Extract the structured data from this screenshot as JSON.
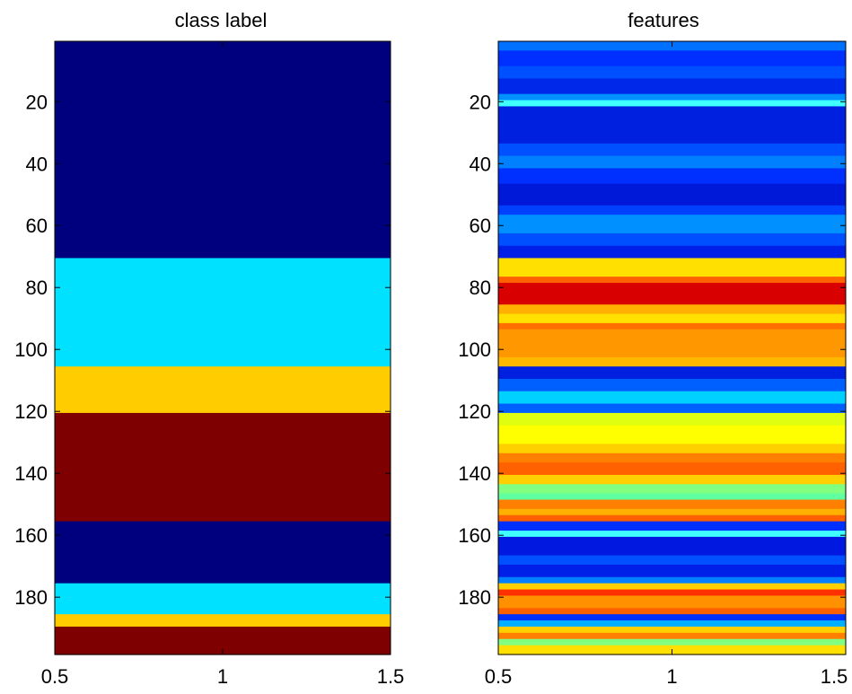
{
  "chart_data": [
    {
      "type": "heatmap",
      "title": "class label",
      "xlabel": "",
      "ylabel": "",
      "xlim": [
        0.5,
        1.5
      ],
      "ylim": [
        0.5,
        198.5
      ],
      "y_reversed": true,
      "x_ticks": [
        "0.5",
        "1",
        "1.5"
      ],
      "y_ticks": [
        "20",
        "40",
        "60",
        "80",
        "100",
        "120",
        "140",
        "160",
        "180"
      ],
      "grid": false,
      "colormap": "jet",
      "bands": [
        {
          "from": 0.5,
          "to": 70.5,
          "color": "#00007f"
        },
        {
          "from": 70.5,
          "to": 105.5,
          "color": "#00e0ff"
        },
        {
          "from": 105.5,
          "to": 120.5,
          "color": "#ffcc00"
        },
        {
          "from": 120.5,
          "to": 155.5,
          "color": "#7f0000"
        },
        {
          "from": 155.5,
          "to": 175.5,
          "color": "#00007f"
        },
        {
          "from": 175.5,
          "to": 185.5,
          "color": "#00e0ff"
        },
        {
          "from": 185.5,
          "to": 189.5,
          "color": "#ffcc00"
        },
        {
          "from": 189.5,
          "to": 198.5,
          "color": "#7f0000"
        }
      ]
    },
    {
      "type": "heatmap",
      "title": "features",
      "xlabel": "",
      "ylabel": "",
      "xlim": [
        0.5,
        1.5
      ],
      "ylim": [
        0.5,
        198.5
      ],
      "y_reversed": true,
      "x_ticks": [
        "0.5",
        "1",
        "1.5"
      ],
      "y_ticks": [
        "20",
        "40",
        "60",
        "80",
        "100",
        "120",
        "140",
        "160",
        "180"
      ],
      "grid": false,
      "colormap": "jet",
      "bands": [
        {
          "from": 0.5,
          "to": 3.5,
          "color": "#0070ff"
        },
        {
          "from": 3.5,
          "to": 8.5,
          "color": "#0030ff"
        },
        {
          "from": 8.5,
          "to": 12.5,
          "color": "#0050ff"
        },
        {
          "from": 12.5,
          "to": 17.5,
          "color": "#0028e8"
        },
        {
          "from": 17.5,
          "to": 19.5,
          "color": "#0090ff"
        },
        {
          "from": 19.5,
          "to": 21.5,
          "color": "#40ffff"
        },
        {
          "from": 21.5,
          "to": 33.5,
          "color": "#0020e0"
        },
        {
          "from": 33.5,
          "to": 37.5,
          "color": "#0050ff"
        },
        {
          "from": 37.5,
          "to": 41.5,
          "color": "#0080ff"
        },
        {
          "from": 41.5,
          "to": 46.5,
          "color": "#0030ff"
        },
        {
          "from": 46.5,
          "to": 53.5,
          "color": "#0018d8"
        },
        {
          "from": 53.5,
          "to": 56.5,
          "color": "#0040ff"
        },
        {
          "from": 56.5,
          "to": 62.5,
          "color": "#0090ff"
        },
        {
          "from": 62.5,
          "to": 66.5,
          "color": "#0050ff"
        },
        {
          "from": 66.5,
          "to": 70.5,
          "color": "#0020e8"
        },
        {
          "from": 70.5,
          "to": 76.5,
          "color": "#ffe000"
        },
        {
          "from": 76.5,
          "to": 78.5,
          "color": "#ff6000"
        },
        {
          "from": 78.5,
          "to": 85.5,
          "color": "#d80000"
        },
        {
          "from": 85.5,
          "to": 88.5,
          "color": "#ffb000"
        },
        {
          "from": 88.5,
          "to": 91.5,
          "color": "#ffe000"
        },
        {
          "from": 91.5,
          "to": 93.5,
          "color": "#ff7000"
        },
        {
          "from": 93.5,
          "to": 102.5,
          "color": "#ff9800"
        },
        {
          "from": 102.5,
          "to": 105.5,
          "color": "#ffb800"
        },
        {
          "from": 105.5,
          "to": 109.5,
          "color": "#0020e0"
        },
        {
          "from": 109.5,
          "to": 113.5,
          "color": "#0060ff"
        },
        {
          "from": 113.5,
          "to": 117.5,
          "color": "#00d0ff"
        },
        {
          "from": 117.5,
          "to": 120.5,
          "color": "#0060ff"
        },
        {
          "from": 120.5,
          "to": 124.5,
          "color": "#e0ff10"
        },
        {
          "from": 124.5,
          "to": 130.5,
          "color": "#ffff00"
        },
        {
          "from": 130.5,
          "to": 133.5,
          "color": "#ffd000"
        },
        {
          "from": 133.5,
          "to": 136.5,
          "color": "#ff8000"
        },
        {
          "from": 136.5,
          "to": 140.5,
          "color": "#ff6000"
        },
        {
          "from": 140.5,
          "to": 143.5,
          "color": "#ffd000"
        },
        {
          "from": 143.5,
          "to": 146.5,
          "color": "#80ff80"
        },
        {
          "from": 146.5,
          "to": 148.5,
          "color": "#60ffa0"
        },
        {
          "from": 148.5,
          "to": 151.5,
          "color": "#ff8000"
        },
        {
          "from": 151.5,
          "to": 153.5,
          "color": "#ffb000"
        },
        {
          "from": 153.5,
          "to": 155.5,
          "color": "#ff6000"
        },
        {
          "from": 155.5,
          "to": 158.5,
          "color": "#0030ff"
        },
        {
          "from": 158.5,
          "to": 160.5,
          "color": "#40ffff"
        },
        {
          "from": 160.5,
          "to": 166.5,
          "color": "#0018e0"
        },
        {
          "from": 166.5,
          "to": 169.5,
          "color": "#0050ff"
        },
        {
          "from": 169.5,
          "to": 173.5,
          "color": "#0020e8"
        },
        {
          "from": 173.5,
          "to": 175.5,
          "color": "#0080ff"
        },
        {
          "from": 175.5,
          "to": 177.5,
          "color": "#ffd000"
        },
        {
          "from": 177.5,
          "to": 179.5,
          "color": "#ff3000"
        },
        {
          "from": 179.5,
          "to": 183.5,
          "color": "#ff9000"
        },
        {
          "from": 183.5,
          "to": 185.5,
          "color": "#ff6000"
        },
        {
          "from": 185.5,
          "to": 187.5,
          "color": "#0030ff"
        },
        {
          "from": 187.5,
          "to": 189.5,
          "color": "#00b0ff"
        },
        {
          "from": 189.5,
          "to": 191.5,
          "color": "#ffd000"
        },
        {
          "from": 191.5,
          "to": 193.5,
          "color": "#ff8000"
        },
        {
          "from": 193.5,
          "to": 195.5,
          "color": "#80ff80"
        },
        {
          "from": 195.5,
          "to": 198.5,
          "color": "#ffe000"
        }
      ]
    }
  ]
}
